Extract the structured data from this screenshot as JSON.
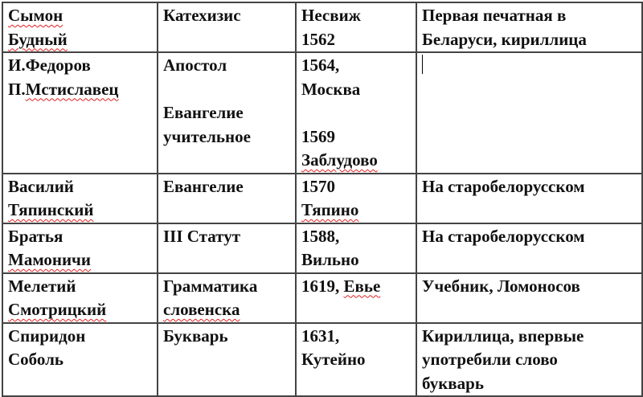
{
  "table": {
    "rows": [
      [
        [
          [
            {
              "t": "Сымон",
              "err": true
            }
          ],
          [
            {
              "t": "Будный",
              "err": true
            }
          ]
        ],
        [
          [
            {
              "t": "Катехизис"
            }
          ]
        ],
        [
          [
            {
              "t": "Несвиж"
            }
          ],
          [
            {
              "t": "1562"
            }
          ]
        ],
        [
          [
            {
              "t": "Первая печатная в"
            }
          ],
          [
            {
              "t": "Беларуси, кириллица"
            }
          ]
        ]
      ],
      [
        [
          [
            {
              "t": "И.Федоров"
            }
          ],
          [
            {
              "t": "П."
            },
            {
              "t": "Мстиславец",
              "err": true
            }
          ]
        ],
        [
          [
            {
              "t": "Апостол"
            }
          ],
          [],
          [
            {
              "t": "Евангелие"
            }
          ],
          [
            {
              "t": "учительное"
            }
          ]
        ],
        [
          [
            {
              "t": "1564,"
            }
          ],
          [
            {
              "t": "Москва"
            }
          ],
          [],
          [
            {
              "t": "1569"
            }
          ],
          [
            {
              "t": "Заблудово",
              "err": true
            }
          ]
        ],
        []
      ],
      [
        [
          [
            {
              "t": "Василий"
            }
          ],
          [
            {
              "t": "Тяпинский",
              "err": true
            }
          ]
        ],
        [
          [
            {
              "t": "Евангелие"
            }
          ]
        ],
        [
          [
            {
              "t": "1570"
            }
          ],
          [
            {
              "t": "Тяпино",
              "err": true
            }
          ]
        ],
        [
          [
            {
              "t": "На старобелорусском"
            }
          ]
        ]
      ],
      [
        [
          [
            {
              "t": "Братья"
            }
          ],
          [
            {
              "t": "Мамоничи",
              "err": true
            }
          ]
        ],
        [
          [
            {
              "t": "III Статут"
            }
          ]
        ],
        [
          [
            {
              "t": "1588,"
            }
          ],
          [
            {
              "t": "Вильно"
            }
          ]
        ],
        [
          [
            {
              "t": "На старобелорусском"
            }
          ]
        ]
      ],
      [
        [
          [
            {
              "t": "Мелетий"
            }
          ],
          [
            {
              "t": "Смотрицкий",
              "err": true
            }
          ]
        ],
        [
          [
            {
              "t": "Грамматика"
            }
          ],
          [
            {
              "t": "словенска",
              "err": true
            }
          ]
        ],
        [
          [
            {
              "t": "1619, "
            },
            {
              "t": "Евье",
              "err": true
            }
          ]
        ],
        [
          [
            {
              "t": "Учебник, Ломоносов"
            }
          ]
        ]
      ],
      [
        [
          [
            {
              "t": "Спиридон"
            }
          ],
          [
            {
              "t": "Соболь"
            }
          ]
        ],
        [
          [
            {
              "t": "Букварь"
            }
          ]
        ],
        [
          [
            {
              "t": "1631,"
            }
          ],
          [
            {
              "t": "Кутейно"
            }
          ]
        ],
        [
          [
            {
              "t": "Кириллица, впервые"
            }
          ],
          [
            {
              "t": "употребили слово"
            }
          ],
          [
            {
              "t": "букварь"
            }
          ]
        ]
      ]
    ],
    "caret_cell": [
      1,
      3
    ],
    "spellcheck_color": "#e02020"
  }
}
